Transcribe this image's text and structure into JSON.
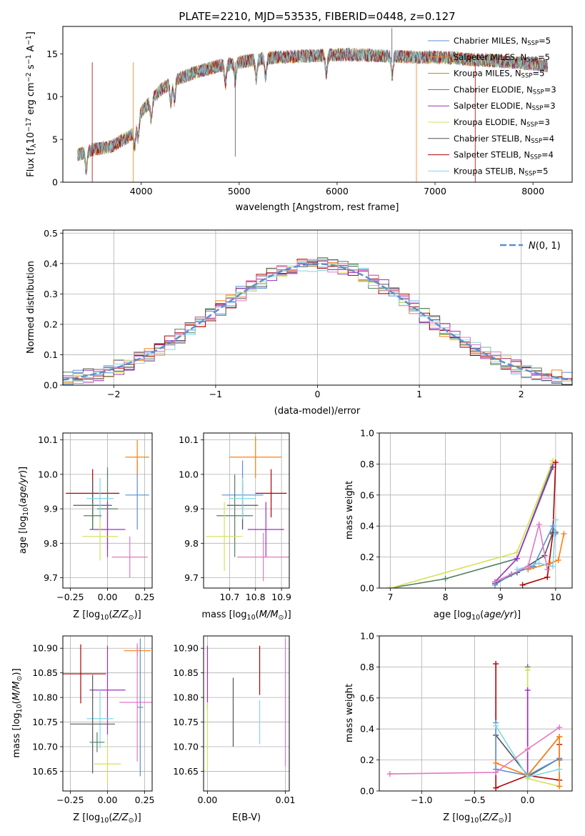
{
  "figure_title": "PLATE=2210, MJD=53535, FIBERID=0448, z=0.127",
  "model_colors": {
    "Chabrier MILES": "#5b8fd6",
    "Salpeter MILES": "#ff7f0e",
    "Kroupa MILES": "#b8860b",
    "Chabrier ELODIE": "#4f7f5f",
    "Salpeter ELODIE": "#9b30c0",
    "Kroupa ELODIE": "#d4e157",
    "Chabrier STELIB": "#555555",
    "Salpeter STELIB": "#b00000",
    "Kroupa STELIB": "#80d8e8",
    "extra_pink": "#e377c2"
  },
  "chart_data": [
    {
      "id": "spectrum",
      "type": "line",
      "title": "PLATE=2210, MJD=53535, FIBERID=0448, z=0.127",
      "xlabel": "wavelength [Angstrom, rest frame]",
      "ylabel": "Flux [f_λ 10^-17 erg cm^-2 s^-1 A^-1]",
      "xlim": [
        3200,
        8400
      ],
      "ylim": [
        0,
        18.2
      ],
      "xticks": [
        4000,
        5000,
        6000,
        7000,
        8000
      ],
      "yticks": [
        0,
        5,
        10,
        15
      ],
      "grid": false,
      "legend_position": "upper-right",
      "continuum_x": [
        3350,
        3500,
        3700,
        3900,
        4000,
        4200,
        4400,
        4600,
        4800,
        5000,
        5200,
        5400,
        5600,
        5800,
        6000,
        6200,
        6400,
        6600,
        6800,
        7000,
        7200,
        7400,
        7600,
        7800,
        8000,
        8150
      ],
      "continuum_y": [
        3.2,
        3.8,
        4.2,
        5.5,
        8.2,
        10.8,
        12.2,
        13.0,
        13.6,
        14.0,
        14.4,
        14.6,
        14.7,
        14.8,
        14.9,
        14.9,
        14.8,
        14.7,
        14.6,
        14.6,
        14.5,
        14.3,
        14.2,
        14.0,
        13.8,
        13.6
      ],
      "series": [
        {
          "name": "Chabrier MILES, N_SSP=5",
          "color": "#5b8fd6"
        },
        {
          "name": "Salpeter MILES, N_SSP=5",
          "color": "#ff7f0e"
        },
        {
          "name": "Kroupa MILES, N_SSP=5",
          "color": "#b8860b"
        },
        {
          "name": "Chabrier ELODIE, N_SSP=3",
          "color": "#4f7f5f"
        },
        {
          "name": "Salpeter ELODIE, N_SSP=3",
          "color": "#9b30c0"
        },
        {
          "name": "Kroupa ELODIE, N_SSP=3",
          "color": "#d4e157"
        },
        {
          "name": "Chabrier STELIB, N_SSP=4",
          "color": "#555555"
        },
        {
          "name": "Salpeter STELIB, N_SSP=4",
          "color": "#b00000"
        },
        {
          "name": "Kroupa STELIB, N_SSP=5",
          "color": "#80d8e8"
        }
      ],
      "legend_labels": [
        {
          "base": "Chabrier MILES, N",
          "sub": "SSP",
          "tail": "=5"
        },
        {
          "base": "Salpeter MILES, N",
          "sub": "SSP",
          "tail": "=5"
        },
        {
          "base": "Kroupa MILES, N",
          "sub": "SSP",
          "tail": "=5"
        },
        {
          "base": "Chabrier ELODIE, N",
          "sub": "SSP",
          "tail": "=3"
        },
        {
          "base": "Salpeter ELODIE, N",
          "sub": "SSP",
          "tail": "=3"
        },
        {
          "base": "Kroupa ELODIE, N",
          "sub": "SSP",
          "tail": "=3"
        },
        {
          "base": "Chabrier STELIB, N",
          "sub": "SSP",
          "tail": "=4"
        },
        {
          "base": "Salpeter STELIB, N",
          "sub": "SSP",
          "tail": "=4"
        },
        {
          "base": "Kroupa STELIB, N",
          "sub": "SSP",
          "tail": "=5"
        }
      ]
    },
    {
      "id": "residuals",
      "type": "line",
      "xlabel": "(data-model)/error",
      "ylabel": "Normed distribution",
      "xlim": [
        -2.5,
        2.5
      ],
      "ylim": [
        0,
        0.51
      ],
      "xticks": [
        -2,
        -1,
        0,
        1,
        2
      ],
      "yticks": [
        0.0,
        0.1,
        0.2,
        0.3,
        0.4,
        0.5
      ],
      "grid": true,
      "legend": "N(0,1)",
      "legend_position": "upper-right",
      "gaussian": {
        "name": "N(0,1)",
        "mean": 0,
        "sigma": 1,
        "color": "#5b8fd6"
      },
      "histogram_bin_width": 0.1,
      "histogram_colors": [
        "#5b8fd6",
        "#ff7f0e",
        "#4f7f5f",
        "#9b30c0",
        "#d4e157",
        "#555555",
        "#b00000",
        "#80d8e8",
        "#e377c2"
      ]
    },
    {
      "id": "age_vs_z",
      "type": "scatter",
      "xlabel": "Z [log10(Z/Z⊙)]",
      "ylabel": "age [log10(age/yr)]",
      "xlim": [
        -0.3,
        0.3
      ],
      "ylim": [
        9.67,
        10.12
      ],
      "xticks": [
        -0.25,
        0.0,
        0.25
      ],
      "yticks": [
        9.7,
        9.8,
        9.9,
        10.0,
        10.1
      ],
      "grid": true,
      "points": [
        {
          "color": "#b00000",
          "x": -0.1,
          "xerr": 0.18,
          "y": 9.945,
          "yerr": 0.07
        },
        {
          "color": "#555555",
          "x": -0.1,
          "xerr": 0.13,
          "y": 9.91,
          "yerr": 0.07
        },
        {
          "color": "#4f7f5f",
          "x": 0.0,
          "xerr": 0.07,
          "y": 9.9,
          "yerr": 0.12
        },
        {
          "color": "#9b30c0",
          "x": 0.0,
          "xerr": 0.12,
          "y": 9.84,
          "yerr": 0.08
        },
        {
          "color": "#d4e157",
          "x": -0.05,
          "xerr": 0.12,
          "y": 9.82,
          "yerr": 0.07
        },
        {
          "color": "#80d8e8",
          "x": -0.05,
          "xerr": 0.09,
          "y": 9.93,
          "yerr": 0.06
        },
        {
          "color": "#5b8fd6",
          "x": 0.2,
          "xerr": 0.08,
          "y": 9.94,
          "yerr": 0.1
        },
        {
          "color": "#ff7f0e",
          "x": 0.2,
          "xerr": 0.08,
          "y": 10.05,
          "yerr": 0.05
        },
        {
          "color": "#e377c2",
          "x": 0.15,
          "xerr": 0.12,
          "y": 9.76,
          "yerr": 0.06
        },
        {
          "color": "#4f7f5f",
          "x": -0.1,
          "xerr": 0.06,
          "y": 9.88,
          "yerr": 0.04
        }
      ]
    },
    {
      "id": "age_vs_mass",
      "type": "scatter",
      "xlabel": "mass [log10(M/M⊙)]",
      "ylabel": "",
      "xlim": [
        10.6,
        10.93
      ],
      "ylim": [
        9.67,
        10.12
      ],
      "xticks": [
        10.7,
        10.8,
        10.9
      ],
      "yticks": [
        9.7,
        9.8,
        9.9,
        10.0,
        10.1
      ],
      "grid": true,
      "points": [
        {
          "color": "#ff7f0e",
          "x": 10.8,
          "xerr": 0.1,
          "y": 10.05,
          "yerr": 0.06
        },
        {
          "color": "#5b8fd6",
          "x": 10.75,
          "xerr": 0.08,
          "y": 9.94,
          "yerr": 0.1
        },
        {
          "color": "#b00000",
          "x": 10.86,
          "xerr": 0.06,
          "y": 9.945,
          "yerr": 0.07
        },
        {
          "color": "#555555",
          "x": 10.75,
          "xerr": 0.06,
          "y": 9.91,
          "yerr": 0.07
        },
        {
          "color": "#4f7f5f",
          "x": 10.72,
          "xerr": 0.07,
          "y": 9.88,
          "yerr": 0.12
        },
        {
          "color": "#9b30c0",
          "x": 10.84,
          "xerr": 0.07,
          "y": 9.84,
          "yerr": 0.08
        },
        {
          "color": "#d4e157",
          "x": 10.68,
          "xerr": 0.07,
          "y": 9.82,
          "yerr": 0.1
        },
        {
          "color": "#80d8e8",
          "x": 10.75,
          "xerr": 0.05,
          "y": 9.93,
          "yerr": 0.06
        },
        {
          "color": "#e377c2",
          "x": 10.83,
          "xerr": 0.1,
          "y": 9.76,
          "yerr": 0.07
        }
      ]
    },
    {
      "id": "weight_vs_age",
      "type": "line",
      "xlabel": "age [log10(age/yr)]",
      "ylabel": "mass weight",
      "xlim": [
        6.8,
        10.3
      ],
      "ylim": [
        0,
        1.0
      ],
      "xticks": [
        7,
        8,
        9,
        10
      ],
      "yticks": [
        0.0,
        0.2,
        0.4,
        0.6,
        0.8,
        1.0
      ],
      "grid": true,
      "series": [
        {
          "color": "#4f7f5f",
          "x": [
            7.0,
            8.0,
            9.3,
            9.95
          ],
          "y": [
            0.0,
            0.06,
            0.19,
            0.8
          ]
        },
        {
          "color": "#d4e157",
          "x": [
            7.0,
            9.3,
            9.95
          ],
          "y": [
            0.0,
            0.23,
            0.82
          ]
        },
        {
          "color": "#9b30c0",
          "x": [
            8.9,
            9.3,
            9.95
          ],
          "y": [
            0.04,
            0.19,
            0.78
          ]
        },
        {
          "color": "#b00000",
          "x": [
            9.4,
            9.85,
            9.95,
            10.0
          ],
          "y": [
            0.02,
            0.07,
            0.35,
            0.81
          ]
        },
        {
          "color": "#555555",
          "x": [
            8.9,
            9.3,
            9.8,
            9.95,
            10.0
          ],
          "y": [
            0.03,
            0.1,
            0.21,
            0.36,
            0.36
          ]
        },
        {
          "color": "#5b8fd6",
          "x": [
            8.9,
            9.2,
            9.6,
            9.95,
            10.0
          ],
          "y": [
            0.02,
            0.09,
            0.14,
            0.4,
            0.35
          ]
        },
        {
          "color": "#ff7f0e",
          "x": [
            9.5,
            9.9,
            10.05,
            10.15
          ],
          "y": [
            0.12,
            0.16,
            0.18,
            0.35
          ]
        },
        {
          "color": "#80d8e8",
          "x": [
            9.3,
            9.7,
            9.95,
            10.0
          ],
          "y": [
            0.12,
            0.16,
            0.14,
            0.44
          ]
        },
        {
          "color": "#e377c2",
          "x": [
            8.9,
            9.5,
            9.7,
            9.85
          ],
          "y": [
            0.04,
            0.14,
            0.41,
            0.12
          ]
        }
      ]
    },
    {
      "id": "mass_vs_z",
      "type": "scatter",
      "xlabel": "Z [log10(Z/Z⊙)]",
      "ylabel": "mass [log10(M/M⊙)]",
      "xlim": [
        -0.3,
        0.3
      ],
      "ylim": [
        10.61,
        10.925
      ],
      "xticks": [
        -0.25,
        0.0,
        0.25
      ],
      "yticks": [
        10.65,
        10.7,
        10.75,
        10.8,
        10.85,
        10.9
      ],
      "grid": true,
      "points": [
        {
          "color": "#ff7f0e",
          "x": 0.2,
          "xerr": 0.09,
          "y": 10.895,
          "yerr": 0.01
        },
        {
          "color": "#b00000",
          "x": -0.18,
          "xerr": 0.17,
          "y": 10.848,
          "yerr": 0.06
        },
        {
          "color": "#9b30c0",
          "x": 0.0,
          "xerr": 0.12,
          "y": 10.815,
          "yerr": 0.09
        },
        {
          "color": "#e377c2",
          "x": 0.2,
          "xerr": 0.12,
          "y": 10.79,
          "yerr": 0.12
        },
        {
          "color": "#80d8e8",
          "x": -0.05,
          "xerr": 0.09,
          "y": 10.757,
          "yerr": 0.06
        },
        {
          "color": "#555555",
          "x": -0.1,
          "xerr": 0.15,
          "y": 10.746,
          "yerr": 0.1
        },
        {
          "color": "#4f7f5f",
          "x": -0.07,
          "xerr": 0.05,
          "y": 10.709,
          "yerr": 0.02
        },
        {
          "color": "#d4e157",
          "x": 0.0,
          "xerr": 0.09,
          "y": 10.665,
          "yerr": 0.04
        },
        {
          "color": "#5b8fd6",
          "x": 0.22,
          "xerr": 0.02,
          "y": 10.78,
          "yerr": 0.14
        }
      ]
    },
    {
      "id": "mass_vs_ebv",
      "type": "scatter",
      "xlabel": "E(B-V)",
      "ylabel": "",
      "xlim": [
        -0.0005,
        0.0105
      ],
      "ylim": [
        10.61,
        10.925
      ],
      "xticks": [
        0.0,
        0.01
      ],
      "yticks": [
        10.65,
        10.7,
        10.75,
        10.8,
        10.85,
        10.9
      ],
      "grid": true,
      "points": [
        {
          "color": "#9b30c0",
          "x": 0.0,
          "xerr": 0,
          "y": 10.84,
          "yerr": 0.065
        },
        {
          "color": "#d4e157",
          "x": 0.0,
          "xerr": 0,
          "y": 10.72,
          "yerr": 0.07
        },
        {
          "color": "#555555",
          "x": 0.0033,
          "xerr": 0,
          "y": 10.77,
          "yerr": 0.07
        },
        {
          "color": "#b00000",
          "x": 0.0067,
          "xerr": 0,
          "y": 10.855,
          "yerr": 0.05
        },
        {
          "color": "#80d8e8",
          "x": 0.0067,
          "xerr": 0,
          "y": 10.75,
          "yerr": 0.045
        },
        {
          "color": "#e377c2",
          "x": 0.01,
          "xerr": 0,
          "y": 10.79,
          "yerr": 0.13
        }
      ]
    },
    {
      "id": "weight_vs_z",
      "type": "line",
      "xlabel": "Z [log10(Z/Z⊙)]",
      "ylabel": "mass weight",
      "xlim": [
        -1.4,
        0.42
      ],
      "ylim": [
        0,
        1.0
      ],
      "xticks": [
        -1.0,
        -0.5,
        0.0
      ],
      "yticks": [
        0.0,
        0.2,
        0.4,
        0.6,
        0.8,
        1.0
      ],
      "grid": true,
      "series": [
        {
          "color": "#b00000",
          "x": [
            -0.3,
            -0.3,
            0.0,
            0.3,
            0.3
          ],
          "y": [
            0.82,
            0.02,
            0.1,
            0.07,
            0.3
          ]
        },
        {
          "color": "#4f7f5f",
          "x": [
            0.0,
            0.0,
            0.3
          ],
          "y": [
            0.8,
            0.09,
            0.21
          ]
        },
        {
          "color": "#d4e157",
          "x": [
            0.0,
            0.0,
            0.3
          ],
          "y": [
            0.78,
            0.08,
            0.03
          ]
        },
        {
          "color": "#9b30c0",
          "x": [
            0.0,
            0.0
          ],
          "y": [
            0.65,
            0.1
          ]
        },
        {
          "color": "#555555",
          "x": [
            -0.3,
            0.0,
            0.3,
            0.3
          ],
          "y": [
            0.36,
            0.1,
            0.35,
            0.2
          ]
        },
        {
          "color": "#5b8fd6",
          "x": [
            -0.3,
            -0.3,
            0.0,
            0.3
          ],
          "y": [
            0.44,
            0.14,
            0.1,
            0.21
          ]
        },
        {
          "color": "#ff7f0e",
          "x": [
            -0.3,
            0.0,
            0.3,
            0.3
          ],
          "y": [
            0.18,
            0.1,
            0.35,
            0.03
          ]
        },
        {
          "color": "#80d8e8",
          "x": [
            -0.3,
            0.0,
            0.3
          ],
          "y": [
            0.42,
            0.09,
            0.14
          ]
        },
        {
          "color": "#e377c2",
          "x": [
            -1.3,
            -0.3,
            0.0,
            0.3
          ],
          "y": [
            0.11,
            0.12,
            0.27,
            0.41
          ]
        }
      ]
    }
  ]
}
